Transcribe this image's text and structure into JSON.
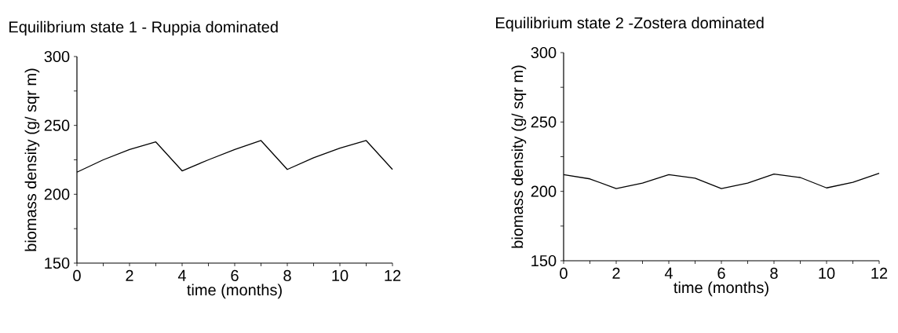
{
  "chart_data": [
    {
      "type": "line",
      "title": "Equilibrium state 1 - Ruppia dominated",
      "xlabel": "time (months)",
      "ylabel": "biomass density (g/ sqr m)",
      "x": [
        0,
        1,
        2,
        3,
        4,
        5,
        6,
        7,
        8,
        9,
        10,
        11,
        12
      ],
      "series": [
        {
          "color": "#000000",
          "values": [
            216,
            225,
            232.5,
            238,
            217,
            225,
            232.5,
            239,
            218,
            226.5,
            233.5,
            239,
            218
          ]
        }
      ],
      "xlim": [
        0,
        12
      ],
      "ylim": [
        150,
        300
      ],
      "xticks": [
        0,
        {
          "value": 1,
          "label": null
        },
        2,
        {
          "value": 3,
          "label": null
        },
        4,
        {
          "value": 5,
          "label": null
        },
        6,
        {
          "value": 7,
          "label": null
        },
        8,
        {
          "value": 9,
          "label": null
        },
        10,
        {
          "value": 11,
          "label": null
        },
        12
      ],
      "yticks": [
        150,
        {
          "value": 175,
          "label": null
        },
        200,
        {
          "value": 225,
          "label": null
        },
        250,
        {
          "value": 275,
          "label": null
        },
        300
      ]
    },
    {
      "type": "line",
      "title": "Equilibrium state 2 -Zostera dominated",
      "xlabel": "time (months)",
      "ylabel": "biomass density (g/ sqr m)",
      "x": [
        0,
        1,
        2,
        3,
        4,
        5,
        6,
        7,
        8,
        9,
        10,
        11,
        12
      ],
      "series": [
        {
          "color": "#000000",
          "values": [
            212,
            209,
            202,
            206,
            212,
            209.5,
            202,
            206,
            212.5,
            210,
            202.5,
            206.5,
            213
          ]
        }
      ],
      "xlim": [
        0,
        12
      ],
      "ylim": [
        150,
        300
      ],
      "xticks": [
        0,
        {
          "value": 1,
          "label": null
        },
        2,
        {
          "value": 3,
          "label": null
        },
        4,
        {
          "value": 5,
          "label": null
        },
        6,
        {
          "value": 7,
          "label": null
        },
        8,
        {
          "value": 9,
          "label": null
        },
        10,
        {
          "value": 11,
          "label": null
        },
        12
      ],
      "yticks": [
        150,
        {
          "value": 175,
          "label": null
        },
        200,
        {
          "value": 225,
          "label": null
        },
        250,
        {
          "value": 275,
          "label": null
        },
        300
      ]
    }
  ]
}
